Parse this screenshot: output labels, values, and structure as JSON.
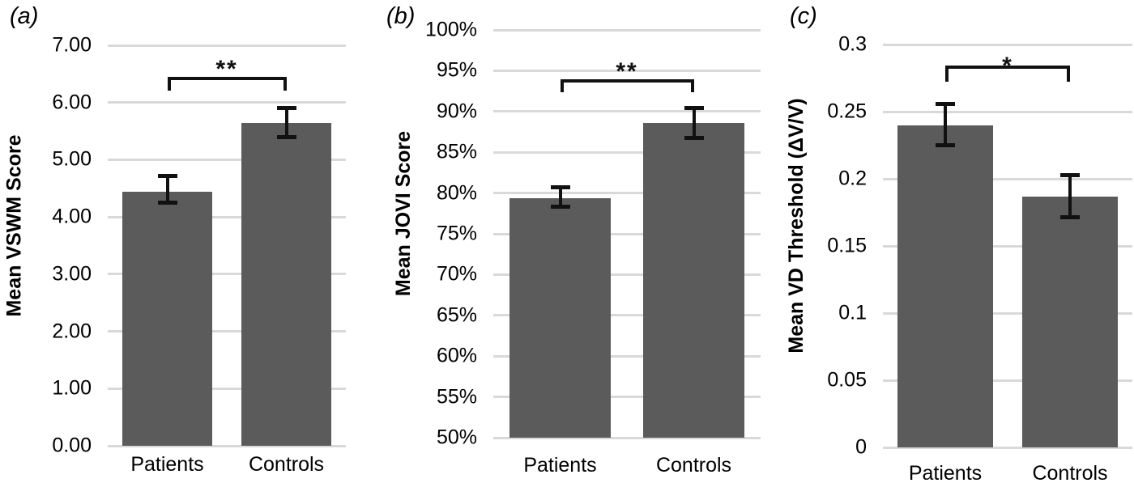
{
  "colors": {
    "bar": "#5B5B5B",
    "error_bar": "#111111",
    "gridline": "#D9D9D9",
    "text": "#000000"
  },
  "chart_data": [
    {
      "type": "bar",
      "panel_label": "(a)",
      "title": "",
      "xlabel": "",
      "ylabel": "Mean VSWM Score",
      "categories": [
        "Patients",
        "Controls"
      ],
      "values": [
        4.44,
        5.64
      ],
      "error_low": [
        4.24,
        5.39
      ],
      "error_high": [
        4.72,
        5.91
      ],
      "significance": "**",
      "ylim": [
        0,
        7
      ],
      "ytick_values": [
        0,
        1,
        2,
        3,
        4,
        5,
        6,
        7
      ],
      "ytick_labels": [
        "0.00",
        "1.00",
        "2.00",
        "3.00",
        "4.00",
        "5.00",
        "6.00",
        "7.00"
      ],
      "grid": true,
      "legend": "none"
    },
    {
      "type": "bar",
      "panel_label": "(b)",
      "title": "",
      "xlabel": "",
      "ylabel": "Mean JOVI Score",
      "categories": [
        "Patients",
        "Controls"
      ],
      "values": [
        79.4,
        88.6
      ],
      "error_low": [
        78.3,
        86.7
      ],
      "error_high": [
        80.8,
        90.5
      ],
      "significance": "**",
      "ylim": [
        50,
        100
      ],
      "ytick_values": [
        50,
        55,
        60,
        65,
        70,
        75,
        80,
        85,
        90,
        95,
        100
      ],
      "ytick_labels": [
        "50%",
        "55%",
        "60%",
        "65%",
        "70%",
        "75%",
        "80%",
        "85%",
        "90%",
        "95%",
        "100%"
      ],
      "grid": true,
      "legend": "none"
    },
    {
      "type": "bar",
      "panel_label": "(c)",
      "title": "",
      "xlabel": "",
      "ylabel": "Mean VD Threshold (ΔV/V)",
      "categories": [
        "Patients",
        "Controls"
      ],
      "values": [
        0.24,
        0.187
      ],
      "error_low": [
        0.225,
        0.171
      ],
      "error_high": [
        0.256,
        0.203
      ],
      "significance": "*",
      "ylim": [
        0,
        0.3
      ],
      "ytick_values": [
        0,
        0.05,
        0.1,
        0.15,
        0.2,
        0.25,
        0.3
      ],
      "ytick_labels": [
        "0",
        "0.05",
        "0.1",
        "0.15",
        "0.2",
        "0.25",
        "0.3"
      ],
      "grid": true,
      "legend": "none"
    }
  ]
}
